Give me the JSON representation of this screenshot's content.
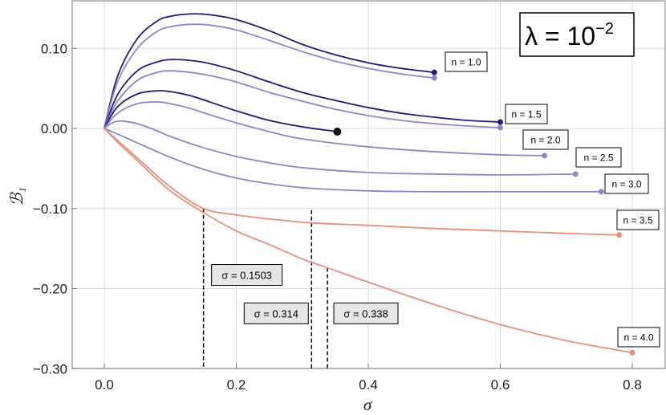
{
  "chart_data": {
    "type": "line",
    "xlabel": "σ",
    "ylabel": "ℬ₁",
    "xlim": [
      -0.05,
      0.85
    ],
    "ylim": [
      -0.3,
      0.16
    ],
    "xticks": [
      "0.0",
      "0.2",
      "0.4",
      "0.6",
      "0.8"
    ],
    "xtick_values": [
      0.0,
      0.2,
      0.4,
      0.6,
      0.8
    ],
    "yticks": [
      "0.10",
      "0.00",
      "−0.10",
      "−0.20",
      "−0.30"
    ],
    "ytick_values": [
      0.1,
      0.0,
      -0.1,
      -0.2,
      -0.3
    ],
    "grid": true,
    "annotation": {
      "lambda_label": "λ = 10",
      "lambda_exponent": "−2",
      "position": "top-right"
    },
    "colors": {
      "dark": "#1e1c78",
      "light": "#8c88c4",
      "salmon": "#e8907a",
      "grid": "#dcdcdc"
    },
    "series": [
      {
        "name": "n = 1.0 (upper)",
        "label": "n = 1.0",
        "color": "dark",
        "end_marker": true,
        "x": [
          0,
          0.02,
          0.05,
          0.08,
          0.1,
          0.13,
          0.16,
          0.2,
          0.25,
          0.3,
          0.35,
          0.4,
          0.45,
          0.5
        ],
        "y": [
          0,
          0.065,
          0.112,
          0.134,
          0.14,
          0.143,
          0.142,
          0.136,
          0.122,
          0.105,
          0.092,
          0.082,
          0.075,
          0.07
        ]
      },
      {
        "name": "n = 1.0 (lower)",
        "color": "light",
        "end_marker": true,
        "x": [
          0,
          0.02,
          0.05,
          0.08,
          0.1,
          0.13,
          0.16,
          0.2,
          0.25,
          0.3,
          0.35,
          0.4,
          0.45,
          0.5
        ],
        "y": [
          0,
          0.058,
          0.1,
          0.121,
          0.127,
          0.13,
          0.129,
          0.123,
          0.11,
          0.096,
          0.084,
          0.075,
          0.068,
          0.063
        ]
      },
      {
        "name": "n = 1.5 (upper)",
        "label": "n = 1.5",
        "color": "dark",
        "end_marker": true,
        "x": [
          0,
          0.02,
          0.05,
          0.08,
          0.1,
          0.13,
          0.16,
          0.2,
          0.25,
          0.3,
          0.35,
          0.4,
          0.45,
          0.5,
          0.55,
          0.6
        ],
        "y": [
          0,
          0.042,
          0.072,
          0.083,
          0.086,
          0.085,
          0.081,
          0.072,
          0.058,
          0.045,
          0.035,
          0.026,
          0.019,
          0.014,
          0.01,
          0.008
        ]
      },
      {
        "name": "n = 1.5 (lower)",
        "color": "light",
        "end_marker": true,
        "x": [
          0,
          0.02,
          0.05,
          0.08,
          0.1,
          0.13,
          0.16,
          0.2,
          0.25,
          0.3,
          0.35,
          0.4,
          0.45,
          0.5,
          0.55,
          0.6
        ],
        "y": [
          0,
          0.034,
          0.06,
          0.07,
          0.072,
          0.07,
          0.066,
          0.058,
          0.045,
          0.034,
          0.024,
          0.016,
          0.01,
          0.006,
          0.003,
          0.001
        ]
      },
      {
        "name": "n = 2.0 (upper)",
        "color": "dark",
        "end_marker": true,
        "end_marker_large": true,
        "x": [
          0,
          0.02,
          0.05,
          0.08,
          0.1,
          0.13,
          0.16,
          0.2,
          0.25,
          0.3,
          0.353
        ],
        "y": [
          0,
          0.027,
          0.043,
          0.047,
          0.046,
          0.041,
          0.033,
          0.022,
          0.01,
          0.002,
          -0.004
        ]
      },
      {
        "name": "n = 2.0 (lower)",
        "label": "n = 2.0",
        "color": "light",
        "end_marker": true,
        "x": [
          0,
          0.02,
          0.05,
          0.08,
          0.1,
          0.13,
          0.16,
          0.2,
          0.25,
          0.3,
          0.4,
          0.5,
          0.6,
          0.667
        ],
        "y": [
          0,
          0.019,
          0.031,
          0.033,
          0.031,
          0.025,
          0.017,
          0.007,
          -0.004,
          -0.013,
          -0.023,
          -0.029,
          -0.033,
          -0.034
        ]
      },
      {
        "name": "n = 2.5",
        "label": "n = 2.5",
        "color": "light",
        "end_marker": true,
        "x": [
          0,
          0.01,
          0.02,
          0.03,
          0.05,
          0.08,
          0.1,
          0.15,
          0.2,
          0.25,
          0.3,
          0.4,
          0.5,
          0.6,
          0.714
        ],
        "y": [
          0,
          0.006,
          0.009,
          0.009,
          0.006,
          -0.003,
          -0.01,
          -0.024,
          -0.035,
          -0.043,
          -0.049,
          -0.055,
          -0.057,
          -0.058,
          -0.057
        ]
      },
      {
        "name": "n = 3.0",
        "label": "n = 3.0",
        "color": "light",
        "end_marker": true,
        "x": [
          0,
          0.02,
          0.05,
          0.1,
          0.15,
          0.2,
          0.25,
          0.3,
          0.4,
          0.5,
          0.6,
          0.753
        ],
        "y": [
          0,
          -0.007,
          -0.018,
          -0.036,
          -0.051,
          -0.062,
          -0.069,
          -0.074,
          -0.078,
          -0.079,
          -0.079,
          -0.079
        ]
      },
      {
        "name": "n = 3.5",
        "label": "n = 3.5",
        "color": "salmon",
        "end_marker": true,
        "x": [
          0,
          0.02,
          0.05,
          0.1,
          0.1503,
          0.2,
          0.25,
          0.314,
          0.4,
          0.5,
          0.6,
          0.7,
          0.78
        ],
        "y": [
          0,
          -0.015,
          -0.037,
          -0.073,
          -0.1,
          -0.108,
          -0.113,
          -0.118,
          -0.121,
          -0.125,
          -0.128,
          -0.131,
          -0.133
        ]
      },
      {
        "name": "n = 4.0",
        "label": "n = 4.0",
        "color": "salmon",
        "end_marker": true,
        "x": [
          0,
          0.02,
          0.05,
          0.1,
          0.15,
          0.2,
          0.25,
          0.3,
          0.338,
          0.4,
          0.5,
          0.6,
          0.7,
          0.8
        ],
        "y": [
          0,
          -0.017,
          -0.04,
          -0.078,
          -0.105,
          -0.128,
          -0.145,
          -0.163,
          -0.174,
          -0.192,
          -0.22,
          -0.245,
          -0.265,
          -0.28
        ]
      }
    ],
    "dashed_markers": [
      {
        "x": 0.1503,
        "y": -0.1,
        "label": "σ = 0.1503"
      },
      {
        "x": 0.314,
        "y": -0.102,
        "label": "σ = 0.314"
      },
      {
        "x": 0.338,
        "y": -0.174,
        "label": "σ = 0.338"
      }
    ]
  }
}
